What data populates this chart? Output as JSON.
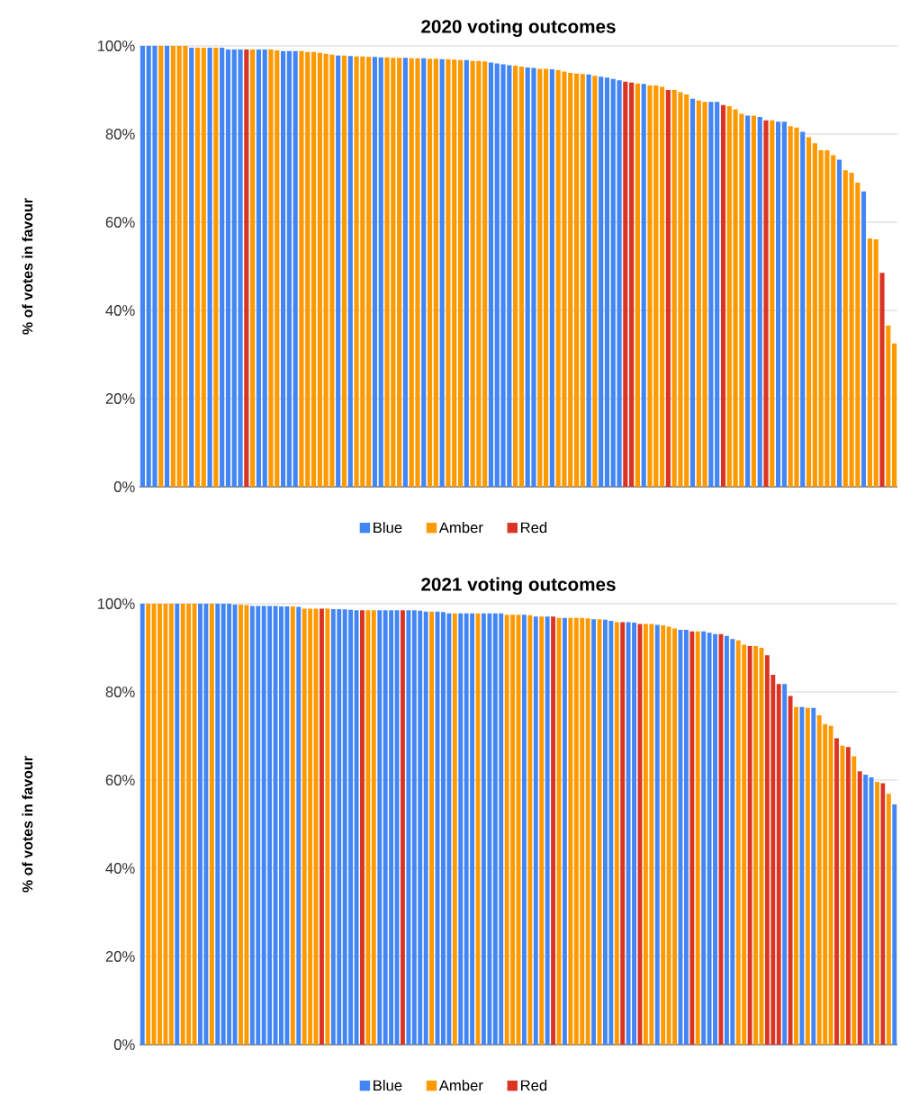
{
  "chart_data": [
    {
      "type": "bar",
      "title": "2020 voting outcomes",
      "ylabel": "% of votes in favour",
      "categories": [
        null,
        null,
        null,
        null,
        null,
        null,
        null,
        null,
        null,
        null,
        null,
        null,
        null,
        null,
        null,
        null,
        null,
        null,
        null,
        null,
        null,
        null,
        null,
        null,
        null,
        null,
        null,
        null,
        null,
        null,
        null,
        null,
        null,
        null,
        null,
        null,
        null,
        null,
        null,
        null,
        null,
        null,
        null,
        null,
        null,
        null,
        null,
        null,
        null,
        null,
        null,
        null,
        null,
        null,
        null,
        null,
        null,
        null,
        null,
        null,
        null,
        null,
        null,
        null,
        null,
        null,
        null,
        null,
        null,
        null,
        null,
        null,
        null,
        null,
        null,
        null,
        null,
        null,
        null,
        null,
        null,
        null,
        null,
        null,
        null,
        null,
        null,
        null,
        null,
        null,
        null,
        null,
        null,
        null,
        null,
        null,
        null,
        null,
        null,
        null,
        null,
        null,
        null,
        null,
        null,
        null,
        null,
        null,
        null,
        null,
        null,
        null,
        null,
        null,
        null,
        null,
        null,
        null,
        null,
        null,
        null,
        null,
        null,
        null
      ],
      "series": [
        {
          "name": "Blue",
          "color": "#4285f4",
          "values": [
            100,
            100,
            100,
            null,
            100,
            null,
            null,
            null,
            99.6,
            null,
            null,
            99.6,
            null,
            99.6,
            99.2,
            99.2,
            99.2,
            null,
            null,
            99.2,
            99.2,
            null,
            null,
            98.8,
            98.8,
            98.8,
            null,
            null,
            null,
            null,
            null,
            null,
            97.8,
            null,
            97.7,
            null,
            null,
            null,
            97.5,
            97.4,
            null,
            null,
            null,
            97.3,
            null,
            null,
            97.2,
            null,
            null,
            97,
            null,
            null,
            null,
            96.8,
            null,
            null,
            null,
            96.2,
            96,
            95.8,
            95.6,
            null,
            null,
            95.1,
            95,
            null,
            null,
            94.7,
            null,
            null,
            null,
            null,
            null,
            93.5,
            null,
            93,
            92.8,
            92.5,
            92.2,
            null,
            null,
            null,
            91.4,
            null,
            null,
            null,
            null,
            null,
            null,
            null,
            88,
            null,
            null,
            87.3,
            87.3,
            null,
            null,
            null,
            null,
            84.2,
            null,
            83.9,
            null,
            null,
            82.8,
            82.8,
            null,
            null,
            80.5,
            null,
            null,
            null,
            null,
            null,
            74.2,
            null,
            null,
            null,
            67,
            null,
            null,
            null,
            null,
            null
          ]
        },
        {
          "name": "Amber",
          "color": "#ff9900",
          "values": [
            null,
            null,
            null,
            100,
            null,
            100,
            100,
            100,
            null,
            99.6,
            99.6,
            null,
            99.6,
            null,
            null,
            null,
            null,
            null,
            99.2,
            null,
            null,
            99.2,
            99,
            null,
            null,
            null,
            98.8,
            98.6,
            98.6,
            98.4,
            98.2,
            98,
            null,
            97.8,
            null,
            97.6,
            97.6,
            97.5,
            null,
            null,
            97.4,
            97.3,
            97.3,
            null,
            97.2,
            97.2,
            null,
            97.1,
            97.1,
            null,
            97,
            96.9,
            96.8,
            null,
            96.6,
            96.6,
            96.5,
            null,
            null,
            null,
            null,
            95.5,
            95.3,
            null,
            null,
            94.8,
            94.8,
            null,
            94.5,
            94.2,
            93.9,
            93.7,
            93.6,
            null,
            93.2,
            null,
            null,
            null,
            null,
            null,
            null,
            91.5,
            null,
            91,
            91,
            90.7,
            null,
            90,
            89.5,
            89,
            null,
            87.6,
            87.3,
            null,
            null,
            null,
            86.3,
            85.6,
            84.6,
            null,
            84.2,
            null,
            null,
            83.1,
            null,
            null,
            81.8,
            81.5,
            null,
            79.3,
            77.9,
            76.3,
            76.3,
            75.2,
            null,
            71.8,
            71.2,
            69,
            null,
            56.3,
            56.1,
            null,
            36.6,
            32.5
          ]
        },
        {
          "name": "Red",
          "color": "#dc3423",
          "values": [
            null,
            null,
            null,
            null,
            null,
            null,
            null,
            null,
            null,
            null,
            null,
            null,
            null,
            null,
            null,
            null,
            null,
            99.2,
            null,
            null,
            null,
            null,
            null,
            null,
            null,
            null,
            null,
            null,
            null,
            null,
            null,
            null,
            null,
            null,
            null,
            null,
            null,
            null,
            null,
            null,
            null,
            null,
            null,
            null,
            null,
            null,
            null,
            null,
            null,
            null,
            null,
            null,
            null,
            null,
            null,
            null,
            null,
            null,
            null,
            null,
            null,
            null,
            null,
            null,
            null,
            null,
            null,
            null,
            null,
            null,
            null,
            null,
            null,
            null,
            null,
            null,
            null,
            null,
            null,
            91.9,
            91.7,
            null,
            null,
            null,
            null,
            null,
            90,
            null,
            null,
            null,
            null,
            null,
            null,
            null,
            null,
            86.6,
            null,
            null,
            null,
            null,
            null,
            null,
            83.1,
            null,
            null,
            null,
            null,
            null,
            null,
            null,
            null,
            null,
            null,
            null,
            null,
            null,
            null,
            null,
            null,
            null,
            null,
            48.5,
            null,
            null
          ]
        }
      ],
      "ylim": [
        0,
        100
      ],
      "yticks": [
        {
          "value": 0,
          "label": "0%"
        },
        {
          "value": 20,
          "label": "20%"
        },
        {
          "value": 40,
          "label": "40%"
        },
        {
          "value": 60,
          "label": "60%"
        },
        {
          "value": 80,
          "label": "80%"
        },
        {
          "value": 100,
          "label": "100%"
        }
      ],
      "grid": "y",
      "legend": "bottom"
    },
    {
      "type": "bar",
      "title": "2021 voting outcomes",
      "ylabel": "% of votes in favour",
      "categories": [
        null,
        null,
        null,
        null,
        null,
        null,
        null,
        null,
        null,
        null,
        null,
        null,
        null,
        null,
        null,
        null,
        null,
        null,
        null,
        null,
        null,
        null,
        null,
        null,
        null,
        null,
        null,
        null,
        null,
        null,
        null,
        null,
        null,
        null,
        null,
        null,
        null,
        null,
        null,
        null,
        null,
        null,
        null,
        null,
        null,
        null,
        null,
        null,
        null,
        null,
        null,
        null,
        null,
        null,
        null,
        null,
        null,
        null,
        null,
        null,
        null,
        null,
        null,
        null,
        null,
        null,
        null,
        null,
        null,
        null,
        null,
        null,
        null,
        null,
        null,
        null,
        null,
        null,
        null,
        null,
        null,
        null,
        null,
        null,
        null,
        null,
        null,
        null,
        null,
        null,
        null,
        null,
        null,
        null,
        null,
        null,
        null,
        null,
        null,
        null,
        null,
        null,
        null,
        null,
        null,
        null,
        null,
        null,
        null,
        null,
        null,
        null,
        null,
        null,
        null,
        null,
        null,
        null,
        null,
        null,
        null,
        null,
        null,
        null,
        null,
        null,
        null,
        null,
        null,
        null,
        null
      ],
      "series": [
        {
          "name": "Blue",
          "color": "#4285f4",
          "values": [
            100,
            null,
            null,
            null,
            null,
            null,
            100,
            null,
            null,
            null,
            100,
            100,
            null,
            100,
            100,
            100,
            99.8,
            null,
            null,
            99.5,
            99.5,
            99.5,
            99.5,
            99.5,
            99.4,
            99.4,
            null,
            99.3,
            null,
            null,
            null,
            null,
            null,
            98.8,
            98.8,
            98.7,
            98.6,
            98.5,
            null,
            null,
            null,
            98.5,
            98.5,
            98.5,
            98.5,
            null,
            98.5,
            98.5,
            98.4,
            98.2,
            null,
            98.2,
            98.1,
            97.8,
            null,
            97.8,
            97.8,
            97.8,
            null,
            97.8,
            97.8,
            97.8,
            97.8,
            null,
            null,
            null,
            97.5,
            null,
            97.1,
            null,
            97.1,
            null,
            null,
            96.8,
            null,
            null,
            null,
            null,
            96.5,
            null,
            96.4,
            96.1,
            null,
            null,
            95.8,
            95.7,
            null,
            null,
            null,
            95.2,
            null,
            null,
            null,
            94.1,
            94.1,
            null,
            null,
            93.7,
            93.4,
            93.1,
            null,
            92.7,
            92,
            null,
            null,
            null,
            null,
            null,
            null,
            null,
            null,
            81.8,
            null,
            null,
            76.6,
            null,
            76.4,
            null,
            null,
            null,
            null,
            null,
            null,
            null,
            null,
            61.2,
            60.6,
            null,
            null,
            null,
            54.5
          ]
        },
        {
          "name": "Amber",
          "color": "#ff9900",
          "values": [
            null,
            100,
            100,
            100,
            100,
            100,
            null,
            100,
            100,
            100,
            null,
            null,
            100,
            null,
            null,
            null,
            null,
            99.8,
            99.7,
            null,
            null,
            null,
            null,
            null,
            null,
            null,
            99.4,
            null,
            98.9,
            98.9,
            98.9,
            null,
            98.9,
            null,
            null,
            null,
            null,
            null,
            null,
            98.5,
            98.5,
            null,
            null,
            null,
            null,
            null,
            null,
            null,
            null,
            null,
            98.2,
            null,
            null,
            null,
            97.8,
            null,
            null,
            null,
            97.8,
            null,
            null,
            null,
            null,
            97.5,
            97.5,
            97.5,
            null,
            97.4,
            null,
            97.1,
            null,
            null,
            96.8,
            null,
            96.8,
            96.8,
            96.8,
            96.7,
            null,
            96.5,
            null,
            null,
            95.8,
            null,
            null,
            null,
            null,
            95.4,
            95.4,
            null,
            95.1,
            94.8,
            94.4,
            null,
            null,
            null,
            93.7,
            null,
            null,
            null,
            null,
            null,
            null,
            91.7,
            90.7,
            null,
            90.4,
            90,
            null,
            null,
            null,
            null,
            null,
            76.6,
            null,
            76.4,
            null,
            74.7,
            72.7,
            72.3,
            null,
            67.8,
            null,
            65.4,
            null,
            null,
            null,
            59.6,
            null,
            56.9,
            null
          ]
        },
        {
          "name": "Red",
          "color": "#dc3423",
          "values": [
            null,
            null,
            null,
            null,
            null,
            null,
            null,
            null,
            null,
            null,
            null,
            null,
            null,
            null,
            null,
            null,
            null,
            null,
            null,
            null,
            null,
            null,
            null,
            null,
            null,
            null,
            null,
            null,
            null,
            null,
            null,
            98.9,
            null,
            null,
            null,
            null,
            null,
            null,
            98.5,
            null,
            null,
            null,
            null,
            null,
            null,
            98.5,
            null,
            null,
            null,
            null,
            null,
            null,
            null,
            null,
            null,
            null,
            null,
            null,
            null,
            null,
            null,
            null,
            null,
            null,
            null,
            null,
            null,
            null,
            null,
            null,
            null,
            97.1,
            null,
            null,
            null,
            null,
            null,
            null,
            null,
            null,
            null,
            null,
            null,
            95.8,
            null,
            null,
            95.4,
            null,
            null,
            null,
            null,
            null,
            null,
            null,
            null,
            93.7,
            null,
            null,
            null,
            null,
            93.1,
            null,
            null,
            null,
            null,
            90.4,
            null,
            null,
            88.3,
            83.9,
            81.8,
            null,
            79.1,
            null,
            null,
            null,
            null,
            null,
            null,
            null,
            69.5,
            null,
            67.5,
            null,
            62,
            null,
            null,
            null,
            59.3,
            null,
            null
          ]
        }
      ],
      "ylim": [
        0,
        100
      ],
      "yticks": [
        {
          "value": 0,
          "label": "0%"
        },
        {
          "value": 20,
          "label": "20%"
        },
        {
          "value": 40,
          "label": "40%"
        },
        {
          "value": 60,
          "label": "60%"
        },
        {
          "value": 80,
          "label": "80%"
        },
        {
          "value": 100,
          "label": "100%"
        }
      ],
      "grid": "y",
      "legend": "bottom"
    }
  ]
}
